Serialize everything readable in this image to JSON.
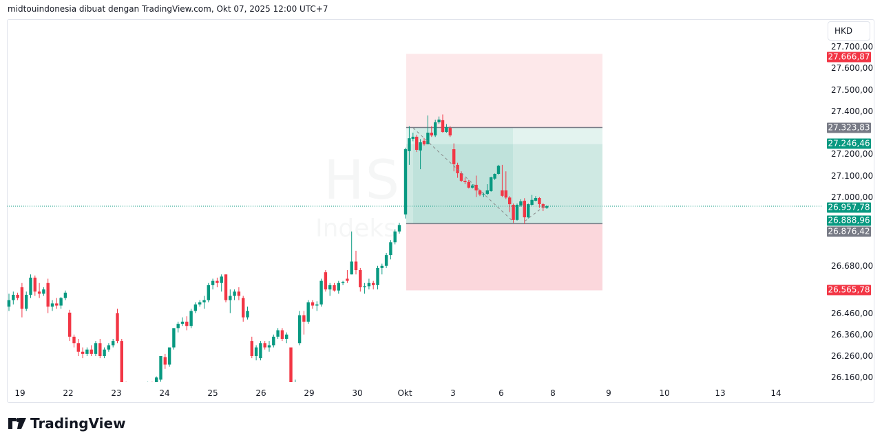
{
  "header": {
    "attribution": "midtouindonesia dibuat dengan TradingView.com, Okt 07, 2025 12:00 UTC+7"
  },
  "currency_button": "HKD",
  "watermark": {
    "symbol": "HSI, 30",
    "name": "Indeks Hang Seng"
  },
  "logo_text": "TradingView",
  "colors": {
    "up": "#089981",
    "down": "#f23645",
    "target_zone": "#fde8ea",
    "profit_zone": "#cfe9e3",
    "stop_zone": "#fbd7dc",
    "current_line": "#089981"
  },
  "price_tags": [
    {
      "label": "27.666,87",
      "color": "#f23645",
      "price": 27666.87
    },
    {
      "label": "27.323,83",
      "color": "#787b86",
      "price": 27323.83
    },
    {
      "label": "27.246,46",
      "color": "#089981",
      "price": 27246.46
    },
    {
      "label": "26.957,78",
      "color": "#089981",
      "price": 26957.78
    },
    {
      "label": "26.888,96",
      "color": "#089981",
      "price": 26888.96
    },
    {
      "label": "26.876,42",
      "color": "#787b86",
      "price": 26876.42
    },
    {
      "label": "26.565,78",
      "color": "#f23645",
      "price": 26565.78
    }
  ],
  "chart_data": {
    "type": "candlestick",
    "symbol": "HSI",
    "interval": "30",
    "currency": "HKD",
    "ylim": [
      26160,
      27700
    ],
    "y_ticks": [
      "27.700,00",
      "27.600,00",
      "27.500,00",
      "27.400,00",
      "27.200,00",
      "27.100,00",
      "27.000,00",
      "26.680,00",
      "26.460,00",
      "26.360,00",
      "26.260,00",
      "26.160,00"
    ],
    "y_tick_values": [
      27700,
      27600,
      27500,
      27400,
      27200,
      27100,
      27000,
      26680,
      26460,
      26360,
      26260,
      26160
    ],
    "x_ticks": [
      "19",
      "22",
      "23",
      "24",
      "25",
      "26",
      "29",
      "30",
      "Okt",
      "3",
      "6",
      "8",
      "9",
      "10",
      "13",
      "14"
    ],
    "current_price": 26957.78,
    "position_tool": {
      "top": 27666.87,
      "entry": 27323.83,
      "mid": 27246.46,
      "lower": 26876.42,
      "stop": 26565.78
    },
    "ohlc": [
      [
        26490,
        26550,
        26470,
        26520
      ],
      [
        26520,
        26560,
        26500,
        26545
      ],
      [
        26545,
        26555,
        26520,
        26530
      ],
      [
        26580,
        26600,
        26440,
        26480
      ],
      [
        26480,
        26560,
        26470,
        26545
      ],
      [
        26545,
        26640,
        26530,
        26625
      ],
      [
        26625,
        26635,
        26540,
        26560
      ],
      [
        26560,
        26600,
        26530,
        26550
      ],
      [
        26550,
        26580,
        26540,
        26570
      ],
      [
        26600,
        26620,
        26460,
        26490
      ],
      [
        26490,
        26520,
        26470,
        26505
      ],
      [
        26505,
        26530,
        26480,
        26495
      ],
      [
        26495,
        26535,
        26480,
        26530
      ],
      [
        26530,
        26565,
        26520,
        26555
      ],
      [
        26462,
        26475,
        26330,
        26350
      ],
      [
        26350,
        26360,
        26300,
        26320
      ],
      [
        26320,
        26340,
        26260,
        26280
      ],
      [
        26280,
        26300,
        26250,
        26270
      ],
      [
        26270,
        26300,
        26260,
        26290
      ],
      [
        26290,
        26310,
        26260,
        26270
      ],
      [
        26270,
        26330,
        26260,
        26320
      ],
      [
        26320,
        26340,
        26250,
        26260
      ],
      [
        26260,
        26300,
        26250,
        26290
      ],
      [
        26290,
        26320,
        26280,
        26310
      ],
      [
        26310,
        26340,
        26300,
        26330
      ],
      [
        26460,
        26480,
        26320,
        26330
      ],
      [
        26330,
        26340,
        26100,
        26120
      ],
      [
        26120,
        26140,
        26080,
        26100
      ],
      [
        26100,
        26110,
        26060,
        26080
      ],
      [
        26080,
        26100,
        26060,
        26090
      ],
      [
        26090,
        26110,
        26070,
        26100
      ],
      [
        26100,
        26130,
        26090,
        26125
      ],
      [
        26125,
        26140,
        26120,
        26135
      ],
      [
        26135,
        26140,
        26125,
        26130
      ],
      [
        26130,
        26165,
        26120,
        26160
      ],
      [
        26150,
        26260,
        26140,
        26260
      ],
      [
        26255,
        26270,
        26200,
        26220
      ],
      [
        26220,
        26300,
        26210,
        26300
      ],
      [
        26300,
        26390,
        26290,
        26390
      ],
      [
        26390,
        26420,
        26370,
        26410
      ],
      [
        26410,
        26440,
        26400,
        26420
      ],
      [
        26420,
        26445,
        26380,
        26400
      ],
      [
        26400,
        26480,
        26390,
        26470
      ],
      [
        26470,
        26510,
        26460,
        26500
      ],
      [
        26500,
        26520,
        26490,
        26510
      ],
      [
        26510,
        26540,
        26480,
        26520
      ],
      [
        26520,
        26600,
        26510,
        26590
      ],
      [
        26590,
        26620,
        26570,
        26610
      ],
      [
        26610,
        26625,
        26580,
        26600
      ],
      [
        26600,
        26640,
        26560,
        26630
      ],
      [
        26640,
        26640,
        26510,
        26520
      ],
      [
        26520,
        26570,
        26460,
        26540
      ],
      [
        26540,
        26570,
        26520,
        26560
      ],
      [
        26560,
        26580,
        26520,
        26540
      ],
      [
        26530,
        26540,
        26420,
        26440
      ],
      [
        26440,
        26490,
        26430,
        26470
      ],
      [
        26330,
        26350,
        26250,
        26260
      ],
      [
        26260,
        26310,
        26240,
        26300
      ],
      [
        26250,
        26330,
        26240,
        26320
      ],
      [
        26320,
        26330,
        26290,
        26300
      ],
      [
        26300,
        26330,
        26280,
        26310
      ],
      [
        26310,
        26360,
        26300,
        26350
      ],
      [
        26350,
        26390,
        26340,
        26380
      ],
      [
        26380,
        26390,
        26330,
        26340
      ],
      [
        26340,
        26370,
        26320,
        26360
      ],
      [
        26300,
        26300,
        26100,
        26120
      ],
      [
        26120,
        26150,
        26090,
        26130
      ],
      [
        26320,
        26470,
        26310,
        26450
      ],
      [
        26450,
        26470,
        26360,
        26420
      ],
      [
        26420,
        26520,
        26410,
        26510
      ],
      [
        26510,
        26520,
        26480,
        26495
      ],
      [
        26495,
        26515,
        26470,
        26500
      ],
      [
        26500,
        26620,
        26490,
        26610
      ],
      [
        26650,
        26660,
        26560,
        26570
      ],
      [
        26570,
        26600,
        26540,
        26590
      ],
      [
        26590,
        26600,
        26560,
        26565
      ],
      [
        26565,
        26610,
        26550,
        26600
      ],
      [
        26600,
        26610,
        26590,
        26605
      ],
      [
        26620,
        26660,
        26600,
        26610
      ],
      [
        26640,
        26840,
        26640,
        26700
      ],
      [
        26700,
        26750,
        26640,
        26660
      ],
      [
        26660,
        26670,
        26560,
        26580
      ],
      [
        26580,
        26600,
        26550,
        26585
      ],
      [
        26585,
        26620,
        26570,
        26600
      ],
      [
        26600,
        26610,
        26570,
        26590
      ],
      [
        26590,
        26680,
        26570,
        26670
      ],
      [
        26670,
        26690,
        26640,
        26680
      ],
      [
        26680,
        26740,
        26670,
        26730
      ],
      [
        26730,
        26800,
        26710,
        26790
      ],
      [
        26790,
        26850,
        26780,
        26840
      ],
      [
        26840,
        26880,
        26830,
        26870
      ],
      [
        26919,
        27230,
        26900,
        27223
      ],
      [
        27214,
        27330,
        27150,
        27274
      ],
      [
        27271,
        27300,
        27260,
        27281
      ],
      [
        27281,
        27290,
        27210,
        27220
      ],
      [
        27217,
        27270,
        27130,
        27255
      ],
      [
        27262,
        27275,
        27240,
        27246
      ],
      [
        27246,
        27380,
        27246,
        27300
      ],
      [
        27300,
        27330,
        27280,
        27287
      ],
      [
        27287,
        27360,
        27280,
        27348
      ],
      [
        27348,
        27375,
        27340,
        27361
      ],
      [
        27358,
        27385,
        27300,
        27303
      ],
      [
        27303,
        27340,
        27300,
        27326
      ],
      [
        27322,
        27330,
        27280,
        27287
      ],
      [
        27223,
        27250,
        27120,
        27153
      ],
      [
        27150,
        27160,
        27090,
        27111
      ],
      [
        27111,
        27120,
        27070,
        27076
      ],
      [
        27076,
        27090,
        27060,
        27070
      ],
      [
        27070,
        27080,
        27040,
        27044
      ],
      [
        27044,
        27060,
        27040,
        27054
      ],
      [
        27057,
        27100,
        27000,
        27031
      ],
      [
        27031,
        27035,
        27005,
        27012
      ],
      [
        27012,
        27020,
        27000,
        27015
      ],
      [
        27015,
        27060,
        27010,
        27031
      ],
      [
        27028,
        27095,
        27025,
        27092
      ],
      [
        27086,
        27110,
        27080,
        27108
      ],
      [
        27108,
        27150,
        27105,
        27146
      ],
      [
        27031,
        27150,
        27000,
        27006
      ],
      [
        27031,
        27120,
        26990,
        26998
      ],
      [
        26998,
        27005,
        26930,
        26967
      ],
      [
        26964,
        26970,
        26880,
        26894
      ],
      [
        26894,
        26970,
        26890,
        26964
      ],
      [
        26961,
        26990,
        26955,
        26980
      ],
      [
        26983,
        26995,
        26876,
        26906
      ],
      [
        26906,
        26970,
        26900,
        26967
      ],
      [
        26964,
        27010,
        26960,
        26987
      ],
      [
        26983,
        27005,
        26980,
        26996
      ],
      [
        26996,
        27000,
        26950,
        26967
      ],
      [
        26967,
        26972,
        26935,
        26950
      ],
      [
        26950,
        26962,
        26945,
        26958
      ]
    ]
  }
}
